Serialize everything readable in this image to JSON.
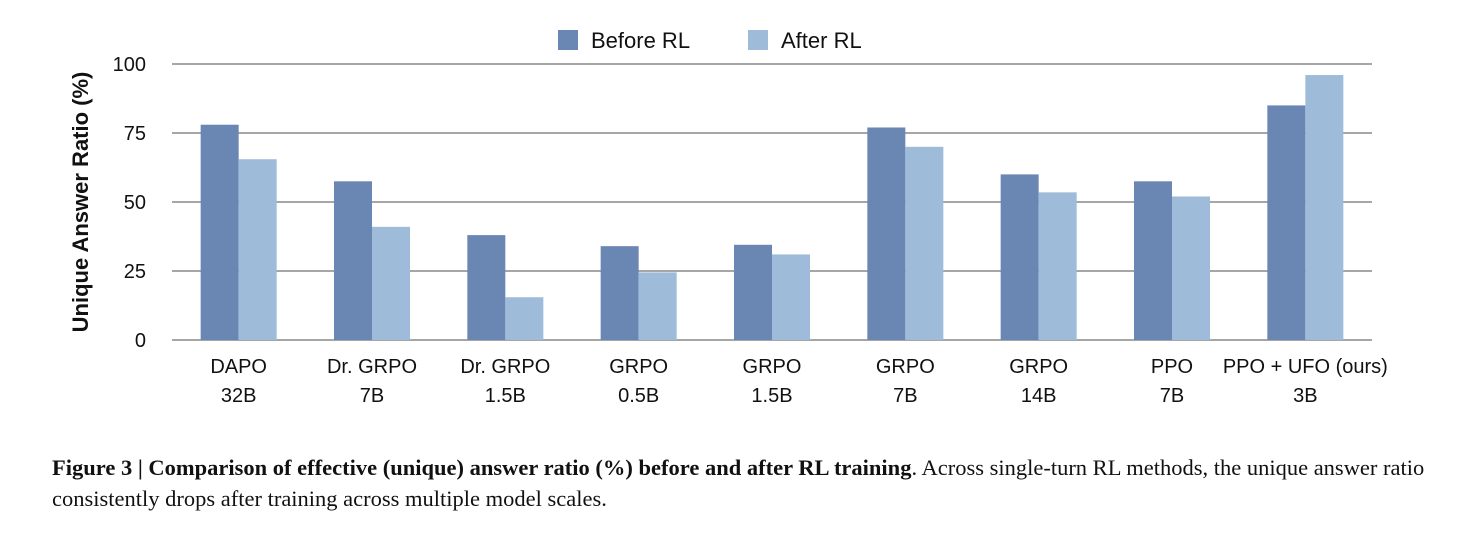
{
  "chart_data": {
    "type": "bar",
    "categories": [
      [
        "DAPO",
        "32B"
      ],
      [
        "Dr. GRPO",
        "7B"
      ],
      [
        "Dr. GRPO",
        "1.5B"
      ],
      [
        "GRPO",
        "0.5B"
      ],
      [
        "GRPO",
        "1.5B"
      ],
      [
        "GRPO",
        "7B"
      ],
      [
        "GRPO",
        "14B"
      ],
      [
        "PPO",
        "7B"
      ],
      [
        "PPO + UFO (ours)",
        "3B"
      ]
    ],
    "series": [
      {
        "name": "Before RL",
        "color": "#6a86b3",
        "values": [
          78,
          57.5,
          38,
          34,
          34.5,
          77,
          60,
          57.5,
          85
        ]
      },
      {
        "name": "After RL",
        "color": "#9fbbda",
        "values": [
          65.5,
          41,
          15.5,
          24.5,
          31,
          70,
          53.5,
          52,
          96
        ]
      }
    ],
    "ylabel": "Unique Answer Ratio (%)",
    "xlabel": "",
    "ylim": [
      0,
      100
    ],
    "yticks": [
      "0",
      "25",
      "50",
      "75",
      "100"
    ],
    "grid": true,
    "legend": "top-center"
  },
  "caption": {
    "label": "Figure 3 | Comparison of effective (unique) answer ratio (%) before and after RL training",
    "text": ". Across single-turn RL methods, the unique answer ratio consistently drops after training across multiple model scales."
  }
}
